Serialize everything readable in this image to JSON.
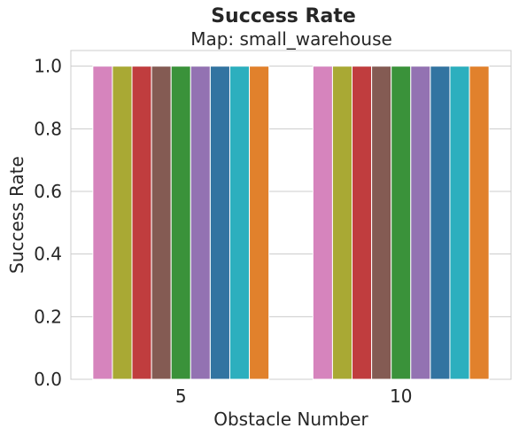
{
  "title": "Success Rate",
  "subtitle": "Map: small_warehouse",
  "chart_data": {
    "type": "bar",
    "title": "Success Rate",
    "subtitle": "Map: small_warehouse",
    "xlabel": "Obstacle Number",
    "ylabel": "Success Rate",
    "categories": [
      "5",
      "10"
    ],
    "ylim": [
      0,
      1.05
    ],
    "yticks": [
      "0.0",
      "0.2",
      "0.4",
      "0.6",
      "0.8",
      "1.0"
    ],
    "grid": true,
    "legend": "none",
    "series": [
      {
        "values": [
          1.0,
          1.0
        ],
        "color": "#d684bd"
      },
      {
        "values": [
          1.0,
          1.0
        ],
        "color": "#a9a934"
      },
      {
        "values": [
          1.0,
          1.0
        ],
        "color": "#c03d3e"
      },
      {
        "values": [
          1.0,
          1.0
        ],
        "color": "#845b53"
      },
      {
        "values": [
          1.0,
          1.0
        ],
        "color": "#3a923a"
      },
      {
        "values": [
          1.0,
          1.0
        ],
        "color": "#9372b2"
      },
      {
        "values": [
          1.0,
          1.0
        ],
        "color": "#3274a1"
      },
      {
        "values": [
          1.0,
          1.0
        ],
        "color": "#2cafbe"
      },
      {
        "values": [
          1.0,
          1.0
        ],
        "color": "#e1812c"
      }
    ]
  }
}
